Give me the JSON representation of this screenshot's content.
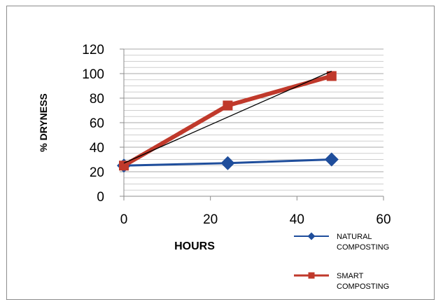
{
  "chart_data": {
    "type": "line",
    "title": "",
    "xlabel": "HOURS",
    "ylabel": "% DRYNESS",
    "xlim": [
      0,
      60
    ],
    "ylim": [
      0,
      120
    ],
    "x_ticks": [
      "0",
      "20",
      "40",
      "60"
    ],
    "y_ticks": [
      "0",
      "20",
      "40",
      "60",
      "80",
      "100",
      "120"
    ],
    "grid": "horizontal",
    "legend_position": "bottom-right",
    "series": [
      {
        "name": "NATURAL\nCOMPOSTING",
        "legend_lines": [
          "NATURAL",
          "COMPOSTING"
        ],
        "color": "#1f4e9c",
        "marker": "diamond",
        "x": [
          0,
          24,
          48
        ],
        "y": [
          25,
          27,
          30
        ]
      },
      {
        "name": "SMART\nCOMPOSTING",
        "legend_lines": [
          "SMART",
          "COMPOSTING"
        ],
        "color": "#c0392b",
        "marker": "square",
        "x": [
          0,
          24,
          48
        ],
        "y": [
          25,
          74,
          98
        ]
      }
    ],
    "trendline": {
      "color": "#000000",
      "x": [
        0,
        48
      ],
      "y": [
        27,
        102
      ]
    }
  }
}
